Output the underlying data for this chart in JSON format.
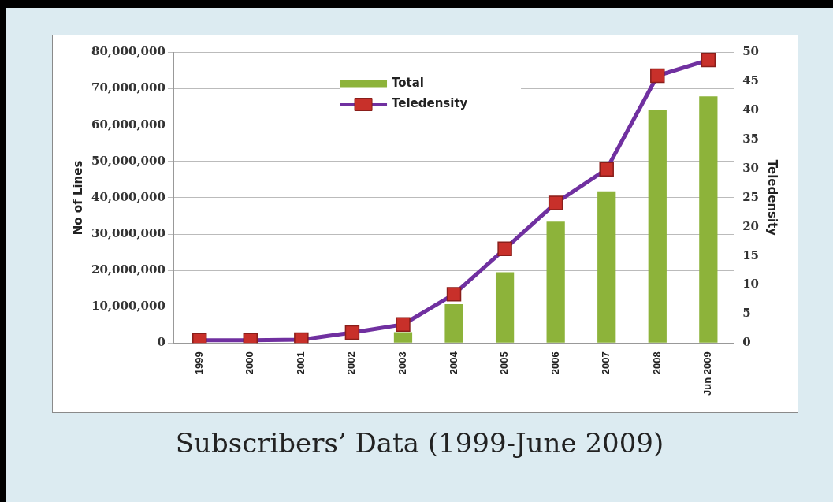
{
  "chart_data": {
    "type": "bar",
    "title": "Subscribers’ Data (1999-June 2009)",
    "ylabel": "No of Lines",
    "y2label": "Teledensity",
    "categories": [
      "1999",
      "2000",
      "2001",
      "2002",
      "2003",
      "2004",
      "2005",
      "2006",
      "2007",
      "2008",
      "Jun 2009"
    ],
    "series": [
      {
        "name": "Total",
        "color": "#8db33a",
        "values": [
          0,
          0,
          0,
          0,
          3000000,
          10700000,
          19500000,
          33400000,
          41800000,
          64200000,
          67900000
        ]
      },
      {
        "name": "Teledensity",
        "type": "line",
        "axis": "y2",
        "color": "#7030a0",
        "values": [
          0.5,
          0.5,
          0.6,
          1.8,
          3.2,
          8.4,
          16.2,
          24.1,
          29.9,
          46,
          48.7
        ]
      }
    ],
    "ylim": [
      0,
      80000000
    ],
    "yticks": [
      {
        "value": 0,
        "label": "0"
      },
      {
        "value": 10000000,
        "label": "10,000,000"
      },
      {
        "value": 20000000,
        "label": "20,000,000"
      },
      {
        "value": 30000000,
        "label": "30,000,000"
      },
      {
        "value": 40000000,
        "label": "40,000,000"
      },
      {
        "value": 50000000,
        "label": "50,000,000"
      },
      {
        "value": 60000000,
        "label": "60,000,000"
      },
      {
        "value": 70000000,
        "label": "70,000,000"
      },
      {
        "value": 80000000,
        "label": "80,000,000"
      }
    ],
    "y2lim": [
      0,
      50
    ],
    "y2ticks": [
      0,
      5,
      10,
      15,
      20,
      25,
      30,
      35,
      40,
      45,
      50
    ],
    "grid": "y",
    "legend": "top",
    "marker": "square"
  }
}
